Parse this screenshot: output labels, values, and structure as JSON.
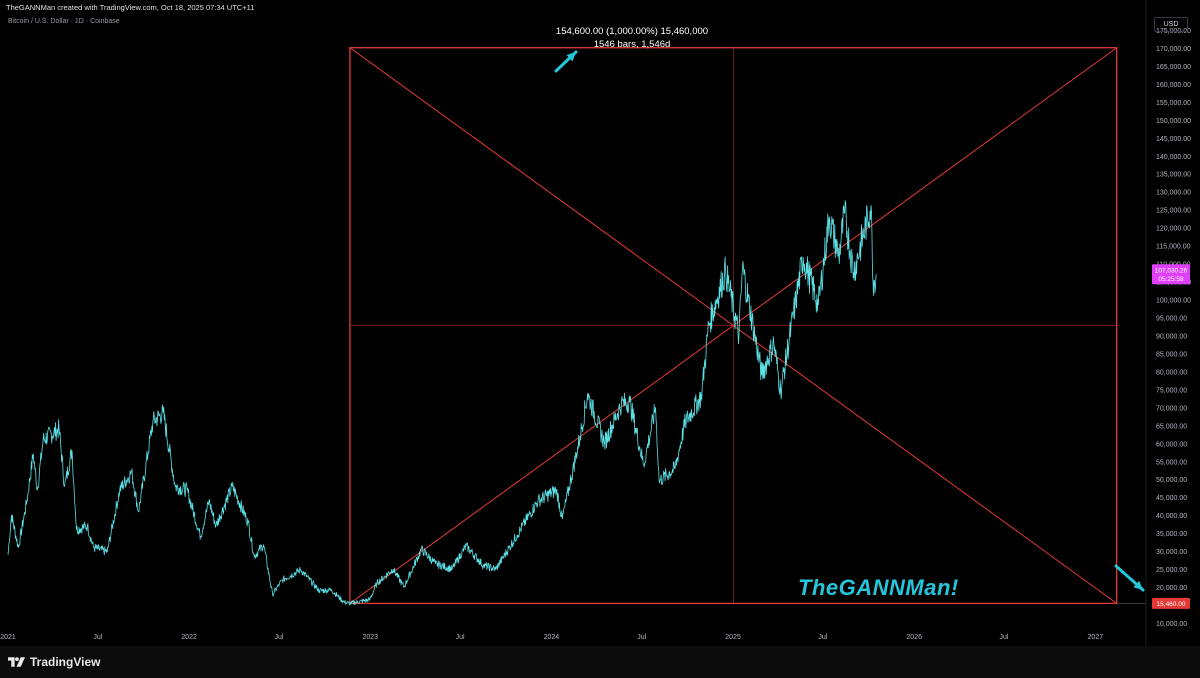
{
  "header": {
    "created_by": "TheGANNMan created with TradingView.com, Oct 18, 2025 07:34 UTC+11",
    "symbol": "Bitcoin / U.S. Dollar · 1D · Coinbase",
    "currency_button": "USD"
  },
  "measure": {
    "line1": "154,600.00 (1,000.00%) 15,460,000",
    "line2": "1546 bars, 1,546d"
  },
  "watermark": "TheGANNMan!",
  "footer": {
    "brand": "TradingView"
  },
  "colors": {
    "background": "#000000",
    "price_line": "#5ce1e6",
    "box": "#e53935",
    "arrow": "#26c6da",
    "price_label": "#e040fb",
    "level_label": "#e53935"
  },
  "chart_data": {
    "type": "line",
    "instrument": "Bitcoin / U.S. Dollar",
    "timeframe": "1D",
    "exchange": "Coinbase",
    "x_labels": [
      "2021",
      "Jul",
      "2022",
      "Jul",
      "2023",
      "Jul",
      "2024",
      "Jul",
      "2025",
      "Jul",
      "2026",
      "Jul",
      "2027"
    ],
    "y_ticks": [
      "175,000.00",
      "170,000.00",
      "165,000.00",
      "160,000.00",
      "155,000.00",
      "150,000.00",
      "145,000.00",
      "140,000.00",
      "135,000.00",
      "130,000.00",
      "125,000.00",
      "120,000.00",
      "115,000.00",
      "110,000.00",
      "105,000.00",
      "100,000.00",
      "95,000.00",
      "90,000.00",
      "85,000.00",
      "80,000.00",
      "75,000.00",
      "70,000.00",
      "65,000.00",
      "60,000.00",
      "55,000.00",
      "50,000.00",
      "45,000.00",
      "40,000.00",
      "35,000.00",
      "30,000.00",
      "25,000.00",
      "20,000.00",
      "10,000.00"
    ],
    "ylim": [
      7500,
      180000
    ],
    "xlim": [
      "2021-01-01",
      "2027-04-01"
    ],
    "series": [
      {
        "values": [
          [
            "2021-01-01",
            29000
          ],
          [
            "2021-01-08",
            40000
          ],
          [
            "2021-01-22",
            31000
          ],
          [
            "2021-02-08",
            44000
          ],
          [
            "2021-02-21",
            57000
          ],
          [
            "2021-03-01",
            47000
          ],
          [
            "2021-03-13",
            61000
          ],
          [
            "2021-04-14",
            64000
          ],
          [
            "2021-04-25",
            48000
          ],
          [
            "2021-05-10",
            58000
          ],
          [
            "2021-05-19",
            36000
          ],
          [
            "2021-06-10",
            37000
          ],
          [
            "2021-06-22",
            31000
          ],
          [
            "2021-07-20",
            29800
          ],
          [
            "2021-08-14",
            47000
          ],
          [
            "2021-09-07",
            52000
          ],
          [
            "2021-09-21",
            41000
          ],
          [
            "2021-10-20",
            66000
          ],
          [
            "2021-11-10",
            68500
          ],
          [
            "2021-12-04",
            48000
          ],
          [
            "2021-12-28",
            47000
          ],
          [
            "2022-01-24",
            34000
          ],
          [
            "2022-02-10",
            44000
          ],
          [
            "2022-02-24",
            37000
          ],
          [
            "2022-03-29",
            48000
          ],
          [
            "2022-04-30",
            38000
          ],
          [
            "2022-05-12",
            28500
          ],
          [
            "2022-05-31",
            31800
          ],
          [
            "2022-06-18",
            18000
          ],
          [
            "2022-07-08",
            22000
          ],
          [
            "2022-08-14",
            24800
          ],
          [
            "2022-09-20",
            19000
          ],
          [
            "2022-10-15",
            19200
          ],
          [
            "2022-11-09",
            15800
          ],
          [
            "2022-11-21",
            15460
          ],
          [
            "2022-12-31",
            16500
          ],
          [
            "2023-01-14",
            21000
          ],
          [
            "2023-02-16",
            25000
          ],
          [
            "2023-03-10",
            20000
          ],
          [
            "2023-04-14",
            30500
          ],
          [
            "2023-05-12",
            26500
          ],
          [
            "2023-06-15",
            25000
          ],
          [
            "2023-07-13",
            31500
          ],
          [
            "2023-08-17",
            26000
          ],
          [
            "2023-09-11",
            25000
          ],
          [
            "2023-10-24",
            34500
          ],
          [
            "2023-12-05",
            44000
          ],
          [
            "2024-01-11",
            47000
          ],
          [
            "2024-01-23",
            39000
          ],
          [
            "2024-02-28",
            62000
          ],
          [
            "2024-03-14",
            73800
          ],
          [
            "2024-04-17",
            60000
          ],
          [
            "2024-05-21",
            71000
          ],
          [
            "2024-06-07",
            71500
          ],
          [
            "2024-07-05",
            54000
          ],
          [
            "2024-07-29",
            70000
          ],
          [
            "2024-08-05",
            49500
          ],
          [
            "2024-09-06",
            53000
          ],
          [
            "2024-09-27",
            66000
          ],
          [
            "2024-10-29",
            73000
          ],
          [
            "2024-11-13",
            93000
          ],
          [
            "2024-12-17",
            108000
          ],
          [
            "2025-01-13",
            90000
          ],
          [
            "2025-01-20",
            109000
          ],
          [
            "2025-02-28",
            79000
          ],
          [
            "2025-03-24",
            88000
          ],
          [
            "2025-04-07",
            74500
          ],
          [
            "2025-05-22",
            111800
          ],
          [
            "2025-06-22",
            98500
          ],
          [
            "2025-07-14",
            123000
          ],
          [
            "2025-08-02",
            112000
          ],
          [
            "2025-08-14",
            124000
          ],
          [
            "2025-09-01",
            107500
          ],
          [
            "2025-10-06",
            126200
          ],
          [
            "2025-10-10",
            105000
          ],
          [
            "2025-10-17",
            107030
          ]
        ]
      }
    ],
    "annotations": {
      "gann_box": {
        "start_date": "2022-11-21",
        "end_date": "2027-02-13",
        "low": 15460,
        "high": 170060
      },
      "price_label": {
        "value": "107,030.26",
        "countdown": "05:25:58"
      },
      "level_label": "15,460.00"
    },
    "grid": false,
    "legend": "none"
  }
}
